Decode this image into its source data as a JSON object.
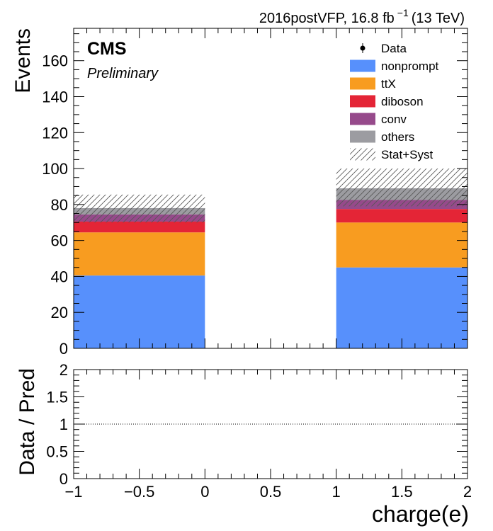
{
  "header": {
    "lumi_main": "2016postVFP, 16.8 fb",
    "lumi_exp": "−1",
    "lumi_energy": "(13 TeV)",
    "cms_label": "CMS",
    "cms_sub": "Preliminary"
  },
  "chart_data": [
    {
      "type": "bar",
      "stacked": true,
      "title": "",
      "xlabel": "",
      "ylabel": "Events",
      "xlim": [
        -1,
        2
      ],
      "ylim": [
        0,
        178
      ],
      "bins": [
        [
          -1,
          0
        ],
        [
          0,
          1
        ],
        [
          1,
          2
        ]
      ],
      "yticks": [
        0,
        20,
        40,
        60,
        80,
        100,
        120,
        140,
        160
      ],
      "series": [
        {
          "name": "nonprompt",
          "color": "#5790fc",
          "values": [
            40.5,
            0,
            45.0
          ]
        },
        {
          "name": "ttX",
          "color": "#f89c20",
          "values": [
            24.0,
            0,
            25.0
          ]
        },
        {
          "name": "diboson",
          "color": "#e42536",
          "values": [
            6.0,
            0,
            7.5
          ]
        },
        {
          "name": "conv",
          "color": "#964a8b",
          "values": [
            4.0,
            0,
            5.0
          ]
        },
        {
          "name": "others",
          "color": "#9c9ca1",
          "values": [
            3.5,
            0,
            6.5
          ]
        }
      ],
      "uncertainty": {
        "name": "Stat+Syst",
        "down": [
          70.0,
          0,
          79.0
        ],
        "up": [
          85.5,
          0,
          100.0
        ]
      },
      "data_points": {
        "name": "Data",
        "values": []
      },
      "legend": "top-right"
    },
    {
      "type": "line",
      "title": "",
      "xlabel": "charge(e)",
      "ylabel": "Data / Pred",
      "xlim": [
        -1,
        2
      ],
      "ylim": [
        0,
        2
      ],
      "xticks": [
        -1,
        -0.5,
        0,
        0.5,
        1,
        1.5,
        2
      ],
      "xtick_labels": [
        "−1",
        "−0.5",
        "0",
        "0.5",
        "1",
        "1.5",
        "2"
      ],
      "yticks": [
        0,
        0.5,
        1,
        1.5,
        2
      ],
      "ytick_labels": [
        "0",
        "0.5",
        "1",
        "1.5",
        "2"
      ],
      "reference_line": 1,
      "points": []
    }
  ]
}
